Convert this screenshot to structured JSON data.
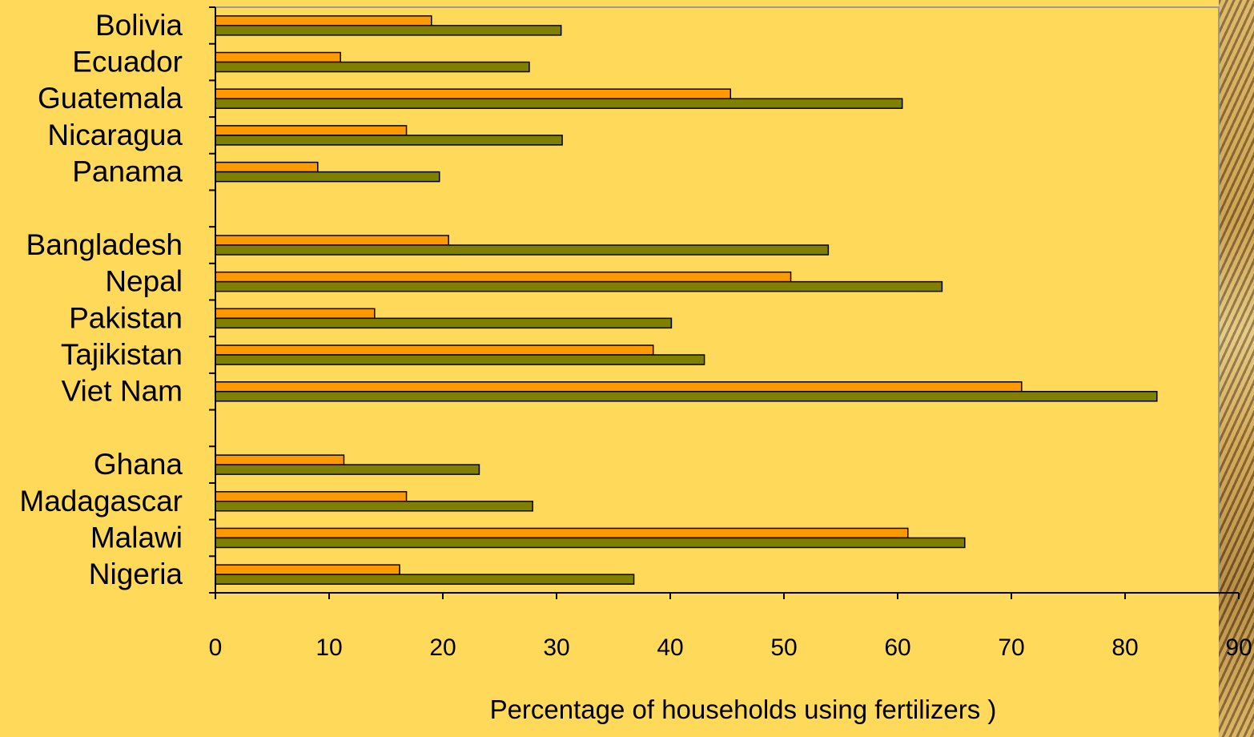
{
  "chart_data": {
    "type": "bar",
    "orientation": "horizontal",
    "categories": [
      "Bolivia",
      "Ecuador",
      "Guatemala",
      "Nicaragua",
      "Panama",
      "",
      "Bangladesh",
      "Nepal",
      "Pakistan",
      "Tajikistan",
      "Viet Nam",
      "",
      "Ghana",
      "Madagascar",
      "Malawi",
      "Nigeria"
    ],
    "series": [
      {
        "color": "#FF9900",
        "values": [
          19,
          11,
          45.3,
          16.8,
          9,
          null,
          20.5,
          50.6,
          14,
          38.5,
          70.9,
          null,
          11.3,
          16.8,
          60.9,
          16.2
        ]
      },
      {
        "color": "#808000",
        "values": [
          30.4,
          27.6,
          60.4,
          30.5,
          19.7,
          null,
          53.9,
          63.9,
          40.1,
          43,
          82.8,
          null,
          23.2,
          27.9,
          65.9,
          36.8
        ]
      }
    ],
    "xlabel": "Percentage of households  using fertilizers )",
    "xlim": [
      0,
      90
    ],
    "xticks": [
      0,
      10,
      20,
      30,
      40,
      50,
      60,
      70,
      80,
      90
    ],
    "grid": false,
    "legend": "none"
  }
}
